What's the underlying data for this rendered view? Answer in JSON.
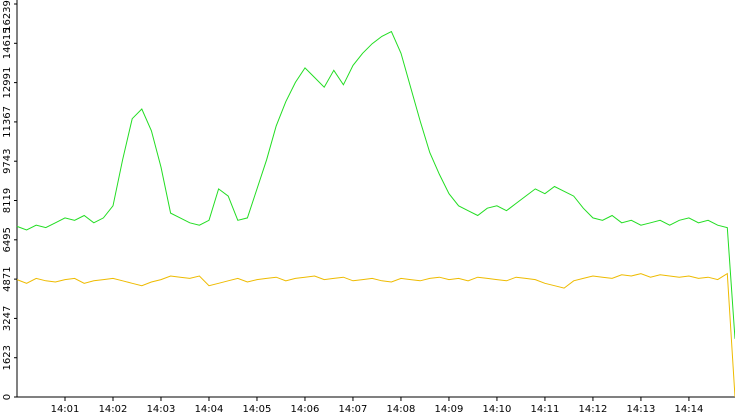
{
  "chart_data": {
    "type": "line",
    "x": [
      0,
      0.2,
      0.4,
      0.6,
      0.8,
      1.0,
      1.2,
      1.4,
      1.6,
      1.8,
      2.0,
      2.2,
      2.4,
      2.6,
      2.8,
      3.0,
      3.2,
      3.4,
      3.6,
      3.8,
      4.0,
      4.2,
      4.4,
      4.6,
      4.8,
      5.0,
      5.2,
      5.4,
      5.6,
      5.8,
      6.0,
      6.2,
      6.4,
      6.6,
      6.8,
      7.0,
      7.2,
      7.4,
      7.6,
      7.8,
      8.0,
      8.2,
      8.4,
      8.6,
      8.8,
      9.0,
      9.2,
      9.4,
      9.6,
      9.8,
      10.0,
      10.2,
      10.4,
      10.6,
      10.8,
      11.0,
      11.2,
      11.4,
      11.6,
      11.8,
      12.0,
      12.2,
      12.4,
      12.6,
      12.8,
      13.0,
      13.2,
      13.4,
      13.6,
      13.8,
      14.0,
      14.2,
      14.4,
      14.6,
      14.8,
      14.96
    ],
    "series": [
      {
        "color": "#22dd22",
        "values": [
          7050,
          6900,
          7100,
          7000,
          7200,
          7400,
          7300,
          7500,
          7200,
          7400,
          7900,
          9800,
          11500,
          11900,
          11000,
          9500,
          7600,
          7400,
          7200,
          7100,
          7300,
          8600,
          8300,
          7300,
          7400,
          8600,
          9800,
          11200,
          12200,
          13000,
          13600,
          13200,
          12800,
          13500,
          12900,
          13700,
          14200,
          14600,
          14900,
          15100,
          14200,
          12800,
          11400,
          10100,
          9200,
          8400,
          7900,
          7700,
          7500,
          7800,
          7900,
          7700,
          8000,
          8300,
          8600,
          8400,
          8700,
          8500,
          8300,
          7800,
          7400,
          7300,
          7500,
          7200,
          7300,
          7100,
          7200,
          7300,
          7100,
          7300,
          7400,
          7200,
          7300,
          7100,
          7000,
          2400
        ]
      },
      {
        "color": "#eebb00",
        "values": [
          4850,
          4700,
          4900,
          4800,
          4750,
          4850,
          4900,
          4700,
          4800,
          4850,
          4900,
          4800,
          4700,
          4600,
          4750,
          4850,
          5000,
          4950,
          4900,
          5000,
          4600,
          4700,
          4800,
          4900,
          4750,
          4850,
          4900,
          4950,
          4800,
          4900,
          4950,
          5000,
          4850,
          4900,
          4950,
          4800,
          4850,
          4900,
          4800,
          4750,
          4900,
          4850,
          4800,
          4900,
          4950,
          4850,
          4900,
          4800,
          4950,
          4900,
          4850,
          4800,
          4950,
          4900,
          4850,
          4700,
          4600,
          4500,
          4800,
          4900,
          5000,
          4950,
          4900,
          5050,
          5000,
          5100,
          4950,
          5050,
          5000,
          4950,
          5000,
          4900,
          4950,
          4850,
          5100,
          0
        ]
      }
    ],
    "xlim": [
      0,
      14.96
    ],
    "xticks": [
      {
        "value": 1,
        "label": "14:01"
      },
      {
        "value": 2,
        "label": "14:02"
      },
      {
        "value": 3,
        "label": "14:03"
      },
      {
        "value": 4,
        "label": "14:04"
      },
      {
        "value": 5,
        "label": "14:05"
      },
      {
        "value": 6,
        "label": "14:06"
      },
      {
        "value": 7,
        "label": "14:07"
      },
      {
        "value": 8,
        "label": "14:08"
      },
      {
        "value": 9,
        "label": "14:09"
      },
      {
        "value": 10,
        "label": "14:10"
      },
      {
        "value": 11,
        "label": "14:11"
      },
      {
        "value": 12,
        "label": "14:12"
      },
      {
        "value": 13,
        "label": "14:13"
      },
      {
        "value": 14,
        "label": "14:14"
      }
    ],
    "ylim": [
      0,
      16239
    ],
    "yticks": [
      0,
      1623,
      3247,
      4871,
      6495,
      8119,
      9743,
      11367,
      12991,
      14615,
      16239
    ]
  }
}
